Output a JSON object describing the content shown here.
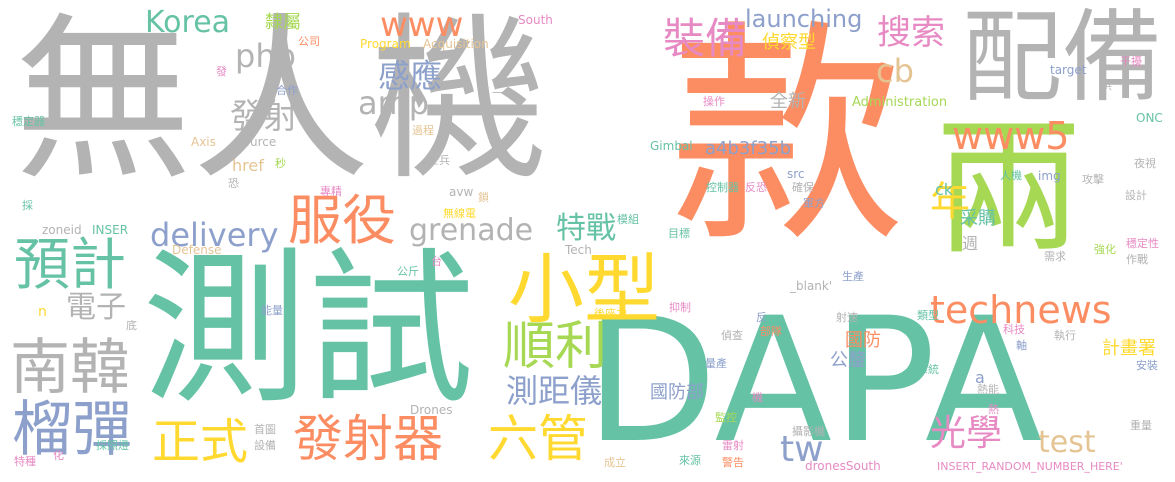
{
  "palette": {
    "gray": "#b3b3b3",
    "orange": "#fc8d62",
    "teal": "#66c2a5",
    "blue": "#8da0cb",
    "pink": "#e78ac3",
    "lime": "#a6d854",
    "yellow": "#ffd92f",
    "tan": "#e5c494"
  },
  "words": [
    {
      "text": "無人機",
      "color": "gray"
    },
    {
      "text": "款",
      "color": "orange"
    },
    {
      "text": "DAPA",
      "color": "teal"
    },
    {
      "text": "測試",
      "color": "teal"
    },
    {
      "text": "兩",
      "color": "lime"
    },
    {
      "text": "配備",
      "color": "gray"
    },
    {
      "text": "小型",
      "color": "yellow"
    },
    {
      "text": "南韓",
      "color": "gray"
    },
    {
      "text": "榴彈",
      "color": "blue"
    },
    {
      "text": "預計",
      "color": "teal"
    },
    {
      "text": "服役",
      "color": "orange"
    },
    {
      "text": "順利",
      "color": "lime"
    },
    {
      "text": "發射器",
      "color": "orange"
    },
    {
      "text": "六管",
      "color": "yellow"
    },
    {
      "text": "正式",
      "color": "yellow"
    },
    {
      "text": "technews",
      "color": "orange"
    },
    {
      "text": "www5",
      "color": "orange"
    },
    {
      "text": "www",
      "color": "orange"
    },
    {
      "text": "Korea",
      "color": "teal"
    },
    {
      "text": "php",
      "color": "gray"
    },
    {
      "text": "amp",
      "color": "gray"
    },
    {
      "text": "delivery",
      "color": "blue"
    },
    {
      "text": "grenade",
      "color": "gray"
    },
    {
      "text": "launching",
      "color": "blue"
    },
    {
      "text": "裝備",
      "color": "pink"
    },
    {
      "text": "搜索",
      "color": "pink"
    },
    {
      "text": "cb",
      "color": "tan"
    },
    {
      "text": "年",
      "color": "yellow"
    },
    {
      "text": "感應",
      "color": "blue"
    },
    {
      "text": "發射",
      "color": "gray"
    },
    {
      "text": "特戰",
      "color": "teal"
    },
    {
      "text": "電子",
      "color": "gray"
    },
    {
      "text": "測距儀",
      "color": "blue"
    },
    {
      "text": "光學",
      "color": "pink"
    },
    {
      "text": "tw",
      "color": "blue"
    },
    {
      "text": "test",
      "color": "tan"
    },
    {
      "text": "國防部",
      "color": "blue"
    },
    {
      "text": "a4b3f35b",
      "color": "blue"
    },
    {
      "text": "全新",
      "color": "gray"
    },
    {
      "text": "偵察型",
      "color": "yellow"
    },
    {
      "text": "隸屬",
      "color": "lime"
    },
    {
      "text": "ck",
      "color": "teal"
    },
    {
      "text": "采購",
      "color": "teal"
    },
    {
      "text": "週",
      "color": "gray"
    },
    {
      "text": "國防",
      "color": "orange"
    },
    {
      "text": "公釐",
      "color": "blue"
    },
    {
      "text": "計畫署",
      "color": "yellow"
    },
    {
      "text": "href",
      "color": "tan"
    },
    {
      "text": "Source",
      "color": "gray"
    },
    {
      "text": "Program",
      "color": "yellow"
    },
    {
      "text": "Acquisition",
      "color": "tan"
    },
    {
      "text": "South",
      "color": "pink"
    },
    {
      "text": "Administration",
      "color": "lime"
    },
    {
      "text": "Defense",
      "color": "tan"
    },
    {
      "text": "Drones",
      "color": "gray"
    },
    {
      "text": "dronesSouth",
      "color": "pink"
    },
    {
      "text": "INSERT_RANDOM_NUMBER_HERE'",
      "color": "pink"
    },
    {
      "text": "_blank'",
      "color": "gray"
    },
    {
      "text": "Gimbal",
      "color": "teal"
    },
    {
      "text": "target",
      "color": "blue"
    },
    {
      "text": "ONC",
      "color": "teal"
    },
    {
      "text": "zoneid",
      "color": "gray"
    },
    {
      "text": "INSER",
      "color": "teal"
    },
    {
      "text": "Axis",
      "color": "tan"
    },
    {
      "text": "img",
      "color": "blue"
    },
    {
      "text": "src",
      "color": "blue"
    },
    {
      "text": "avw",
      "color": "gray"
    },
    {
      "text": "Tech",
      "color": "gray"
    },
    {
      "text": "a",
      "color": "blue"
    },
    {
      "text": "n",
      "color": "yellow"
    },
    {
      "text": "公司",
      "color": "orange"
    },
    {
      "text": "發",
      "color": "pink"
    },
    {
      "text": "合作",
      "color": "blue"
    },
    {
      "text": "穩定器",
      "color": "teal"
    },
    {
      "text": "過程",
      "color": "tan"
    },
    {
      "text": "秒",
      "color": "lime"
    },
    {
      "text": "士兵",
      "color": "gray"
    },
    {
      "text": "恐",
      "color": "gray"
    },
    {
      "text": "專精",
      "color": "pink"
    },
    {
      "text": "鎖",
      "color": "tan"
    },
    {
      "text": "無線電",
      "color": "yellow"
    },
    {
      "text": "模組",
      "color": "teal"
    },
    {
      "text": "目標",
      "color": "teal"
    },
    {
      "text": "二",
      "color": "gray"
    },
    {
      "text": "操作",
      "color": "pink"
    },
    {
      "text": "控制器",
      "color": "teal"
    },
    {
      "text": "反恐",
      "color": "pink"
    },
    {
      "text": "確保",
      "color": "gray"
    },
    {
      "text": "軍方",
      "color": "blue"
    },
    {
      "text": "人機",
      "color": "teal"
    },
    {
      "text": "攻擊",
      "color": "gray"
    },
    {
      "text": "夜視",
      "color": "gray"
    },
    {
      "text": "設計",
      "color": "gray"
    },
    {
      "text": "穩定性",
      "color": "pink"
    },
    {
      "text": "作戰",
      "color": "gray"
    },
    {
      "text": "強化",
      "color": "lime"
    },
    {
      "text": "需求",
      "color": "gray"
    },
    {
      "text": "生產",
      "color": "blue"
    },
    {
      "text": "干擾",
      "color": "pink"
    },
    {
      "text": "供",
      "color": "gray"
    },
    {
      "text": "採",
      "color": "teal"
    },
    {
      "text": "公斤",
      "color": "teal"
    },
    {
      "text": "台",
      "color": "pink"
    },
    {
      "text": "能量",
      "color": "blue"
    },
    {
      "text": "底",
      "color": "gray"
    },
    {
      "text": "後座力",
      "color": "yellow"
    },
    {
      "text": "抑制",
      "color": "pink"
    },
    {
      "text": "射速",
      "color": "gray"
    },
    {
      "text": "反",
      "color": "blue"
    },
    {
      "text": "類型",
      "color": "teal"
    },
    {
      "text": "偵查",
      "color": "gray"
    },
    {
      "text": "部隊",
      "color": "orange"
    },
    {
      "text": "科技",
      "color": "pink"
    },
    {
      "text": "軸",
      "color": "blue"
    },
    {
      "text": "執行",
      "color": "gray"
    },
    {
      "text": "量產",
      "color": "blue"
    },
    {
      "text": "系統",
      "color": "teal"
    },
    {
      "text": "熱能",
      "color": "gray"
    },
    {
      "text": "熱",
      "color": "pink"
    },
    {
      "text": "安裝",
      "color": "blue"
    },
    {
      "text": "機",
      "color": "pink"
    },
    {
      "text": "監控",
      "color": "lime"
    },
    {
      "text": "攝影機",
      "color": "gray"
    },
    {
      "text": "首圖",
      "color": "gray"
    },
    {
      "text": "設備",
      "color": "gray"
    },
    {
      "text": "採照燈",
      "color": "teal"
    },
    {
      "text": "特種",
      "color": "pink"
    },
    {
      "text": "化",
      "color": "pink"
    },
    {
      "text": "成立",
      "color": "tan"
    },
    {
      "text": "來源",
      "color": "teal"
    },
    {
      "text": "警告",
      "color": "orange"
    },
    {
      "text": "雷射",
      "color": "pink"
    },
    {
      "text": "重量",
      "color": "gray"
    }
  ]
}
